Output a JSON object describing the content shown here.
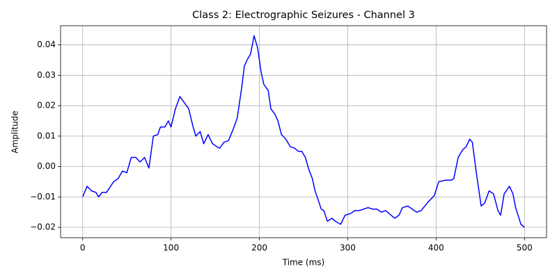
{
  "chart_data": {
    "type": "line",
    "title": "Class 2: Electrographic Seizures - Channel 3",
    "x_label": "Time (ms)",
    "y_label": "Amplitude",
    "x": [
      0,
      5,
      10,
      15,
      18,
      22,
      27,
      35,
      40,
      45,
      50,
      55,
      60,
      65,
      70,
      75,
      80,
      85,
      88,
      93,
      97,
      100,
      105,
      110,
      115,
      120,
      125,
      128,
      133,
      137,
      142,
      147,
      152,
      155,
      160,
      165,
      170,
      175,
      180,
      183,
      186,
      190,
      194,
      198,
      202,
      205,
      210,
      213,
      218,
      221,
      225,
      230,
      235,
      240,
      244,
      248,
      252,
      256,
      260,
      263,
      266,
      270,
      273,
      277,
      282,
      286,
      292,
      297,
      303,
      308,
      313,
      318,
      323,
      328,
      333,
      338,
      343,
      347,
      353,
      358,
      362,
      368,
      373,
      378,
      383,
      390,
      398,
      403,
      410,
      417,
      420,
      425,
      430,
      434,
      438,
      441,
      446,
      451,
      455,
      460,
      465,
      470,
      473,
      477,
      483,
      487,
      490,
      496,
      500
    ],
    "series": [
      {
        "name": "Channel 3",
        "color": "#0000ff",
        "values": [
          -0.01,
          -0.0065,
          -0.008,
          -0.0085,
          -0.01,
          -0.0085,
          -0.0085,
          -0.005,
          -0.004,
          -0.0015,
          -0.002,
          0.003,
          0.003,
          0.0015,
          0.003,
          -0.0005,
          0.01,
          0.0105,
          0.013,
          0.013,
          0.015,
          0.013,
          0.019,
          0.023,
          0.021,
          0.019,
          0.013,
          0.01,
          0.0115,
          0.0075,
          0.0105,
          0.0075,
          0.0065,
          0.006,
          0.008,
          0.0085,
          0.012,
          0.016,
          0.026,
          0.033,
          0.035,
          0.037,
          0.043,
          0.039,
          0.031,
          0.027,
          0.025,
          0.019,
          0.017,
          0.015,
          0.0105,
          0.009,
          0.0065,
          0.006,
          0.005,
          0.005,
          0.003,
          -0.001,
          -0.004,
          -0.008,
          -0.0105,
          -0.014,
          -0.0145,
          -0.018,
          -0.017,
          -0.018,
          -0.019,
          -0.016,
          -0.0155,
          -0.0145,
          -0.0145,
          -0.014,
          -0.0135,
          -0.014,
          -0.014,
          -0.015,
          -0.0145,
          -0.0155,
          -0.017,
          -0.016,
          -0.0135,
          -0.013,
          -0.014,
          -0.015,
          -0.0145,
          -0.012,
          -0.0095,
          -0.005,
          -0.0045,
          -0.0045,
          -0.004,
          0.003,
          0.0055,
          0.0065,
          0.009,
          0.008,
          -0.003,
          -0.013,
          -0.012,
          -0.008,
          -0.009,
          -0.0145,
          -0.016,
          -0.009,
          -0.0065,
          -0.009,
          -0.0135,
          -0.019,
          -0.02
        ]
      }
    ],
    "xlim": [
      -25,
      525
    ],
    "ylim": [
      -0.0234,
      0.0463
    ],
    "xticks": [
      0,
      100,
      200,
      300,
      400,
      500
    ],
    "yticks": [
      {
        "value": -0.02,
        "label": "−0.02"
      },
      {
        "value": -0.01,
        "label": "−0.01"
      },
      {
        "value": 0,
        "label": "0.00"
      },
      0.01,
      0.02,
      0.03,
      0.04
    ],
    "grid": true
  }
}
